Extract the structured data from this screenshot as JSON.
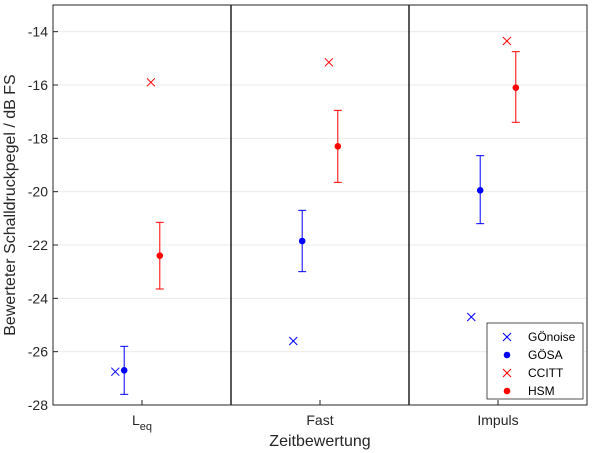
{
  "chart_data": {
    "type": "scatter",
    "xlabel": "Zeitbewertung",
    "ylabel": "Bewerteter Schalldruckpegel / dB FS",
    "ylim": [
      -28,
      -13
    ],
    "yticks": [
      -28,
      -26,
      -24,
      -22,
      -20,
      -18,
      -16,
      -14
    ],
    "categories": [
      {
        "main": "L",
        "sub": "eq"
      },
      {
        "main": "Fast",
        "sub": ""
      },
      {
        "main": "Impuls",
        "sub": ""
      }
    ],
    "grid": "horizontal",
    "legend_position": "bottom-right",
    "series": [
      {
        "name": "GÖnoise",
        "marker": "x",
        "color": "#0000ff",
        "offset": -0.3,
        "values": [
          -26.75,
          -25.6,
          -24.7
        ]
      },
      {
        "name": "GÖSA",
        "marker": "dot",
        "color": "#0000ff",
        "offset": -0.2,
        "values": [
          -26.7,
          -21.85,
          -19.95
        ],
        "err_low": [
          -27.6,
          -23.0,
          -21.2
        ],
        "err_high": [
          -25.8,
          -20.7,
          -18.65
        ]
      },
      {
        "name": "CCITT",
        "marker": "x",
        "color": "#ff0000",
        "offset": 0.1,
        "values": [
          -15.9,
          -15.15,
          -14.35
        ]
      },
      {
        "name": "HSM",
        "marker": "dot",
        "color": "#ff0000",
        "offset": 0.2,
        "values": [
          -22.4,
          -18.3,
          -16.1
        ],
        "err_low": [
          -23.65,
          -19.65,
          -17.4
        ],
        "err_high": [
          -21.15,
          -16.95,
          -14.75
        ]
      }
    ]
  }
}
